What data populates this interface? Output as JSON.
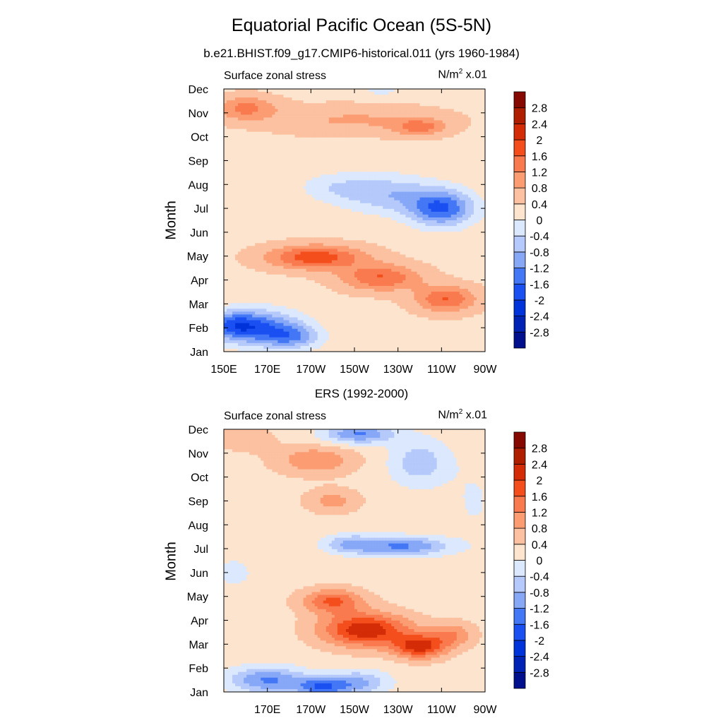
{
  "header": {
    "title": "Equatorial Pacific Ocean (5S-5N)"
  },
  "colorbar": {
    "levels": [
      -2.8,
      -2.4,
      -2,
      -1.6,
      -1.2,
      -0.8,
      -0.4,
      0,
      0.4,
      0.8,
      1.2,
      1.6,
      2,
      2.4,
      2.8
    ],
    "labels": [
      "-2.8",
      "-2.4",
      "-2",
      "-1.6",
      "-1.2",
      "-0.8",
      "-0.4",
      "0",
      "0.4",
      "0.8",
      "1.2",
      "1.6",
      "2",
      "2.4",
      "2.8"
    ],
    "colors": [
      "#000f8b",
      "#0023b6",
      "#0033da",
      "#1a4ff2",
      "#4377f5",
      "#87a7f7",
      "#b5c9fa",
      "#dbe8fd",
      "#fde4cf",
      "#fcc1a0",
      "#fb9c72",
      "#fa7a4f",
      "#f34e1c",
      "#d32c06",
      "#b01e00",
      "#850900"
    ]
  },
  "chart_data": [
    {
      "type": "heatmap",
      "title": "b.e21.BHIST.f09_g17.CMIP6-historical.011 (yrs 1960-1984)",
      "left_label": "Surface zonal stress",
      "units_label": "N/m",
      "units_sup": "2",
      "units_scale": " x.01",
      "ylabel": "Month",
      "x_tick_labels": [
        "150E",
        "170E",
        "170W",
        "150W",
        "130W",
        "110W",
        "90W"
      ],
      "x_tick_values": [
        150,
        170,
        190,
        210,
        230,
        250,
        270
      ],
      "y_tick_labels": [
        "Jan",
        "Feb",
        "Mar",
        "Apr",
        "May",
        "Jun",
        "Jul",
        "Aug",
        "Sep",
        "Oct",
        "Nov",
        "Dec"
      ],
      "xlim": [
        150,
        270
      ],
      "ylim": [
        1,
        12
      ],
      "centers": [
        {
          "x": 168,
          "y": 2.0,
          "v": -1.6,
          "sx": 18,
          "sy": 0.75
        },
        {
          "x": 154,
          "y": 2.1,
          "v": -1.4,
          "sx": 12,
          "sy": 0.6
        },
        {
          "x": 182,
          "y": 1.6,
          "v": -1.1,
          "sx": 13,
          "sy": 0.5
        },
        {
          "x": 250,
          "y": 7.0,
          "v": -1.9,
          "sx": 15,
          "sy": 0.75
        },
        {
          "x": 225,
          "y": 7.6,
          "v": -1.0,
          "sx": 22,
          "sy": 0.8
        },
        {
          "x": 200,
          "y": 7.9,
          "v": -0.5,
          "sx": 16,
          "sy": 0.6
        },
        {
          "x": 192,
          "y": 4.95,
          "v": 1.6,
          "sx": 22,
          "sy": 0.5
        },
        {
          "x": 222,
          "y": 4.1,
          "v": 1.3,
          "sx": 18,
          "sy": 0.55
        },
        {
          "x": 252,
          "y": 3.2,
          "v": 1.3,
          "sx": 14,
          "sy": 0.55
        },
        {
          "x": 160,
          "y": 11.2,
          "v": 1.0,
          "sx": 14,
          "sy": 0.5
        },
        {
          "x": 240,
          "y": 10.4,
          "v": 0.95,
          "sx": 12,
          "sy": 0.35
        },
        {
          "x": 210,
          "y": 10.7,
          "v": 0.55,
          "sx": 40,
          "sy": 0.6
        },
        {
          "x": 222,
          "y": 12.0,
          "v": -0.45,
          "sx": 10,
          "sy": 0.35
        }
      ],
      "background": 0.3
    },
    {
      "type": "heatmap",
      "title": "ERS (1992-2000)",
      "left_label": "Surface zonal stress",
      "units_label": "N/m",
      "units_sup": "2",
      "units_scale": " x.01",
      "ylabel": "Month",
      "x_tick_labels": [
        "170E",
        "170W",
        "150W",
        "130W",
        "110W",
        "90W"
      ],
      "x_tick_values": [
        170,
        190,
        210,
        230,
        250,
        270
      ],
      "y_tick_labels": [
        "Jan",
        "Feb",
        "Mar",
        "Apr",
        "May",
        "Jun",
        "Jul",
        "Aug",
        "Sep",
        "Oct",
        "Nov",
        "Dec"
      ],
      "xlim": [
        150,
        270
      ],
      "ylim": [
        1,
        12
      ],
      "centers": [
        {
          "x": 215,
          "y": 3.6,
          "v": 2.1,
          "sx": 20,
          "sy": 0.7
        },
        {
          "x": 240,
          "y": 2.9,
          "v": 1.9,
          "sx": 12,
          "sy": 0.5
        },
        {
          "x": 200,
          "y": 4.8,
          "v": 1.4,
          "sx": 14,
          "sy": 0.5
        },
        {
          "x": 255,
          "y": 3.4,
          "v": 0.9,
          "sx": 10,
          "sy": 0.5
        },
        {
          "x": 170,
          "y": 1.5,
          "v": -1.5,
          "sx": 18,
          "sy": 0.55
        },
        {
          "x": 195,
          "y": 1.2,
          "v": -1.6,
          "sx": 12,
          "sy": 0.4
        },
        {
          "x": 212,
          "y": 1.4,
          "v": -1.1,
          "sx": 14,
          "sy": 0.5
        },
        {
          "x": 232,
          "y": 7.1,
          "v": -1.5,
          "sx": 22,
          "sy": 0.4
        },
        {
          "x": 208,
          "y": 7.2,
          "v": -0.9,
          "sx": 12,
          "sy": 0.4
        },
        {
          "x": 212,
          "y": 11.8,
          "v": -1.5,
          "sx": 16,
          "sy": 0.4
        },
        {
          "x": 240,
          "y": 10.6,
          "v": -0.9,
          "sx": 14,
          "sy": 1.0
        },
        {
          "x": 192,
          "y": 10.7,
          "v": 0.9,
          "sx": 18,
          "sy": 0.6
        },
        {
          "x": 200,
          "y": 9.0,
          "v": 0.7,
          "sx": 12,
          "sy": 0.5
        },
        {
          "x": 160,
          "y": 11.6,
          "v": 0.5,
          "sx": 12,
          "sy": 0.5
        },
        {
          "x": 155,
          "y": 6.0,
          "v": -0.45,
          "sx": 8,
          "sy": 0.6
        },
        {
          "x": 265,
          "y": 9.0,
          "v": -0.3,
          "sx": 10,
          "sy": 1.5
        }
      ],
      "background": 0.25
    }
  ]
}
